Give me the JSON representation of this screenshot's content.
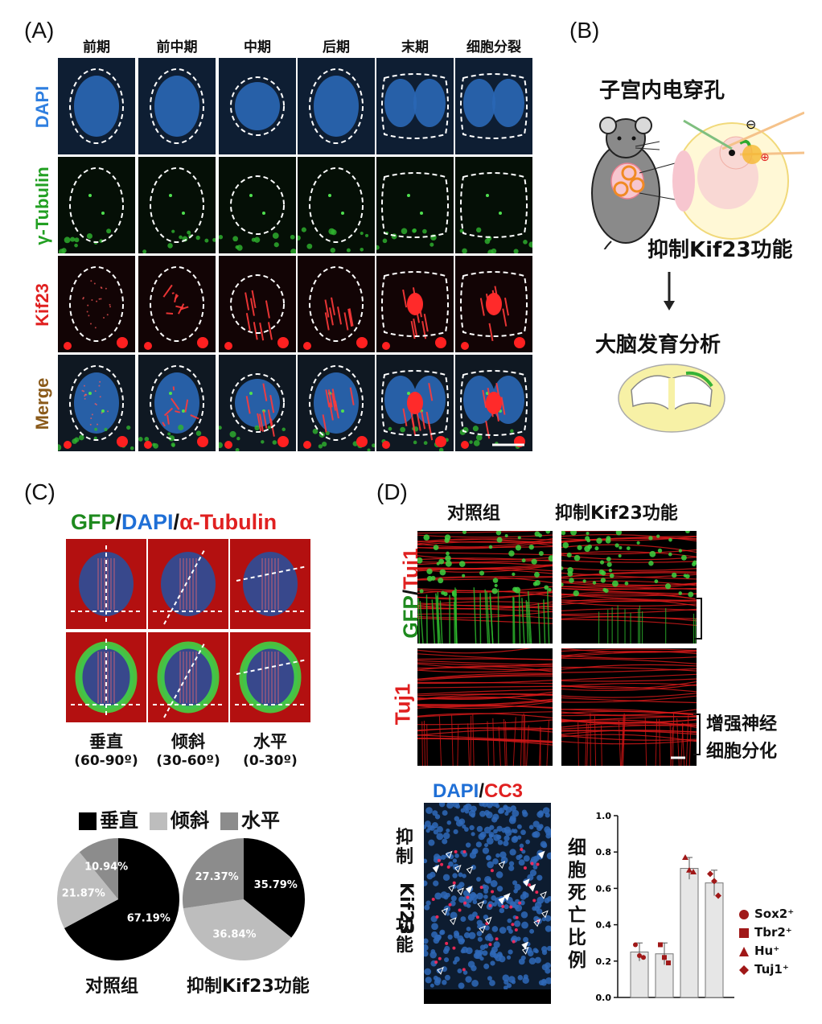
{
  "panelA": {
    "letter": "(A)",
    "columns": [
      "前期",
      "前中期",
      "中期",
      "后期",
      "末期",
      "细胞分裂"
    ],
    "rows": [
      {
        "label": "DAPI",
        "color": "#2f7fe0"
      },
      {
        "label": "γ-Tubulin",
        "color": "#22a022"
      },
      {
        "label": "Kif23",
        "color": "#e02020"
      },
      {
        "label": "Merge",
        "color": "#8a5a1a"
      }
    ]
  },
  "panelB": {
    "letter": "(B)",
    "step1": "子宫内电穿孔",
    "step2": "抑制Kif23功能",
    "step3": "大脑发育分析",
    "minus_symbol": "⊖",
    "plus_symbol": "⊕"
  },
  "panelC": {
    "letter": "(C)",
    "title_gfp": "GFP",
    "title_sep1": "/",
    "title_dapi": "DAPI",
    "title_sep2": "/",
    "title_tub": "α-Tubulin",
    "colors": {
      "gfp": "#1e8a1e",
      "dapi": "#1f6fd6",
      "tub": "#e02020"
    },
    "orientations": [
      {
        "name": "垂直",
        "range": "(60-90º)"
      },
      {
        "name": "倾斜",
        "range": "(30-60º)"
      },
      {
        "name": "水平",
        "range": "(0-30º)"
      }
    ],
    "legend": [
      {
        "label": "垂直",
        "color": "#000000"
      },
      {
        "label": "倾斜",
        "color": "#bdbdbd"
      },
      {
        "label": "水平",
        "color": "#8c8c8c"
      }
    ],
    "chart_data": [
      {
        "type": "pie",
        "title": "对照组",
        "slices": [
          {
            "label": "垂直",
            "value": 67.19,
            "text": "67.19%",
            "color": "#000000"
          },
          {
            "label": "倾斜",
            "value": 21.87,
            "text": "21.87%",
            "color": "#bdbdbd"
          },
          {
            "label": "水平",
            "value": 10.94,
            "text": "10.94%",
            "color": "#8c8c8c"
          }
        ]
      },
      {
        "type": "pie",
        "title": "抑制Kif23功能",
        "slices": [
          {
            "label": "垂直",
            "value": 35.79,
            "text": "35.79%",
            "color": "#000000"
          },
          {
            "label": "倾斜",
            "value": 36.84,
            "text": "36.84%",
            "color": "#bdbdbd"
          },
          {
            "label": "水平",
            "value": 27.37,
            "text": "27.37%",
            "color": "#8c8c8c"
          }
        ]
      }
    ]
  },
  "panelD": {
    "letter": "(D)",
    "col1": "对照组",
    "col2": "抑制Kif23功能",
    "row1_label_gfp": "GFP",
    "row1_label_sep": "/",
    "row1_label_tuj": "Tuj1",
    "row2_label": "Tuj1",
    "bracket_text_1": "增强神经",
    "bracket_text_2": "细胞分化",
    "cc3_title_dapi": "DAPI",
    "cc3_title_sep": "/",
    "cc3_title_cc3": "CC3",
    "cc3_side_label": "抑制Kif23功能",
    "bar": {
      "type": "bar",
      "ylabel": "细胞死亡比例",
      "ylim": [
        0.0,
        1.0
      ],
      "yticks": [
        "0.0",
        "0.2",
        "0.4",
        "0.6",
        "0.8",
        "1.0"
      ],
      "categories": [
        "Sox2⁺",
        "Tbr2⁺",
        "Hu⁺",
        "Tuj1⁺"
      ],
      "values": [
        0.25,
        0.24,
        0.71,
        0.63
      ],
      "errors": [
        0.05,
        0.06,
        0.06,
        0.07
      ],
      "points": [
        [
          0.29,
          0.23,
          0.22
        ],
        [
          0.29,
          0.22,
          0.19
        ],
        [
          0.77,
          0.7,
          0.69
        ],
        [
          0.68,
          0.64,
          0.56
        ]
      ],
      "legend": [
        {
          "label": "Sox2⁺",
          "shape": "circle"
        },
        {
          "label": "Tbr2⁺",
          "shape": "square"
        },
        {
          "label": "Hu⁺",
          "shape": "triangle"
        },
        {
          "label": "Tuj1⁺",
          "shape": "diamond"
        }
      ],
      "marker_color": "#a01818"
    }
  }
}
